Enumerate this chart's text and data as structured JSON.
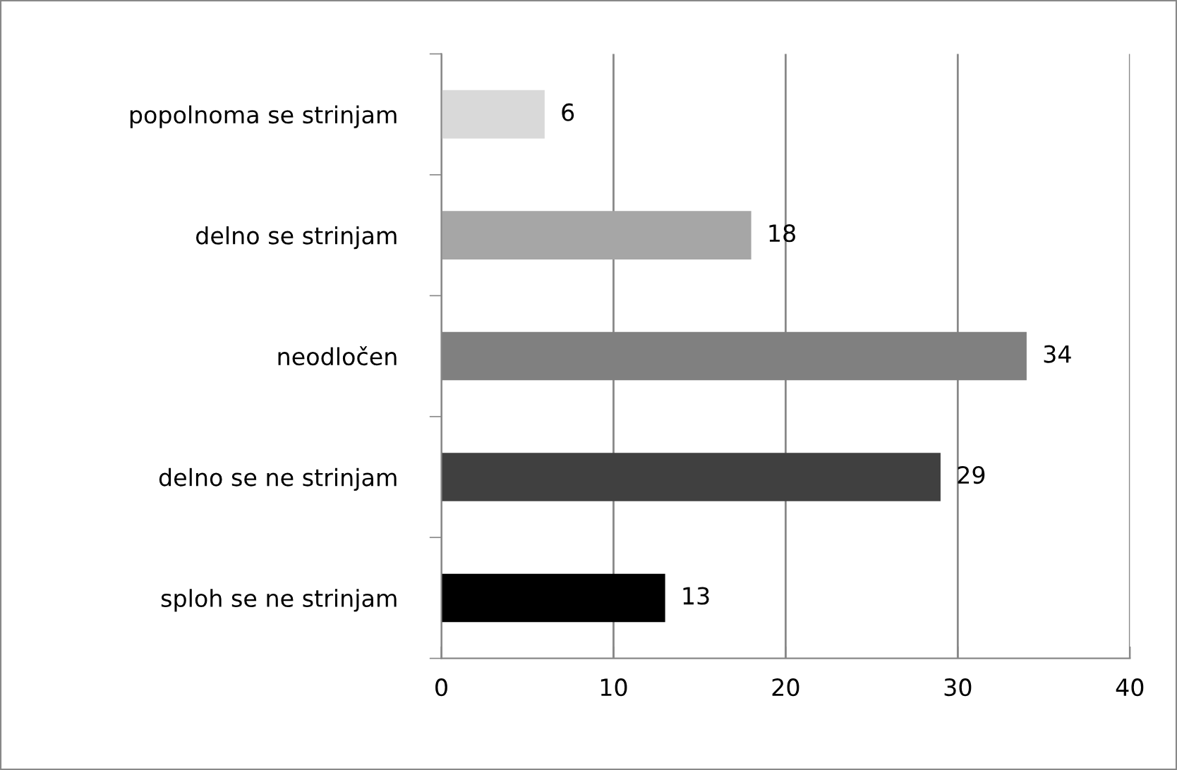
{
  "chart_data": {
    "type": "bar",
    "orientation": "horizontal",
    "categories": [
      "popolnoma se strinjam",
      "delno se strinjam",
      "neodločen",
      "delno se ne strinjam",
      "sploh se ne strinjam"
    ],
    "values": [
      6,
      18,
      34,
      29,
      13
    ],
    "colors": [
      "#d9d9d9",
      "#a6a6a6",
      "#808080",
      "#404040",
      "#000000"
    ],
    "xlim": [
      0,
      40
    ],
    "xticks": [
      0,
      10,
      20,
      30,
      40
    ],
    "grid": "x",
    "data_labels": true,
    "legend": false
  }
}
